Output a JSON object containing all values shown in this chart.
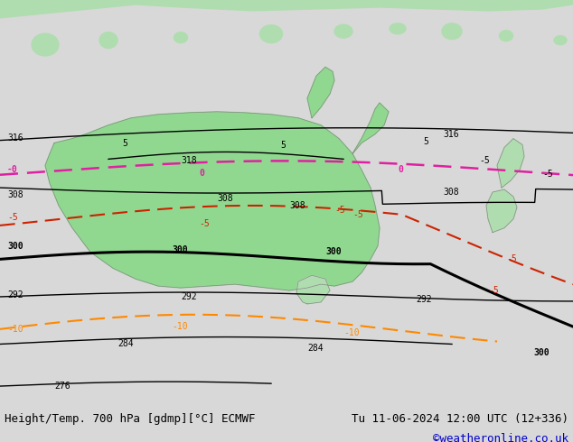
{
  "title_left": "Height/Temp. 700 hPa [gdmp][°C] ECMWF",
  "title_right": "Tu 11-06-2024 12:00 UTC (12+336)",
  "credit": "©weatheronline.co.uk",
  "background_color": "#d8d8d8",
  "australia_color": "#90d890",
  "ocean_color": "#dce8f0",
  "bottom_bar_color": "#f0f0f0",
  "title_fontsize": 9,
  "credit_color": "#0000cc",
  "figsize": [
    6.34,
    4.9
  ],
  "dpi": 100,
  "label_fontsize": 7
}
